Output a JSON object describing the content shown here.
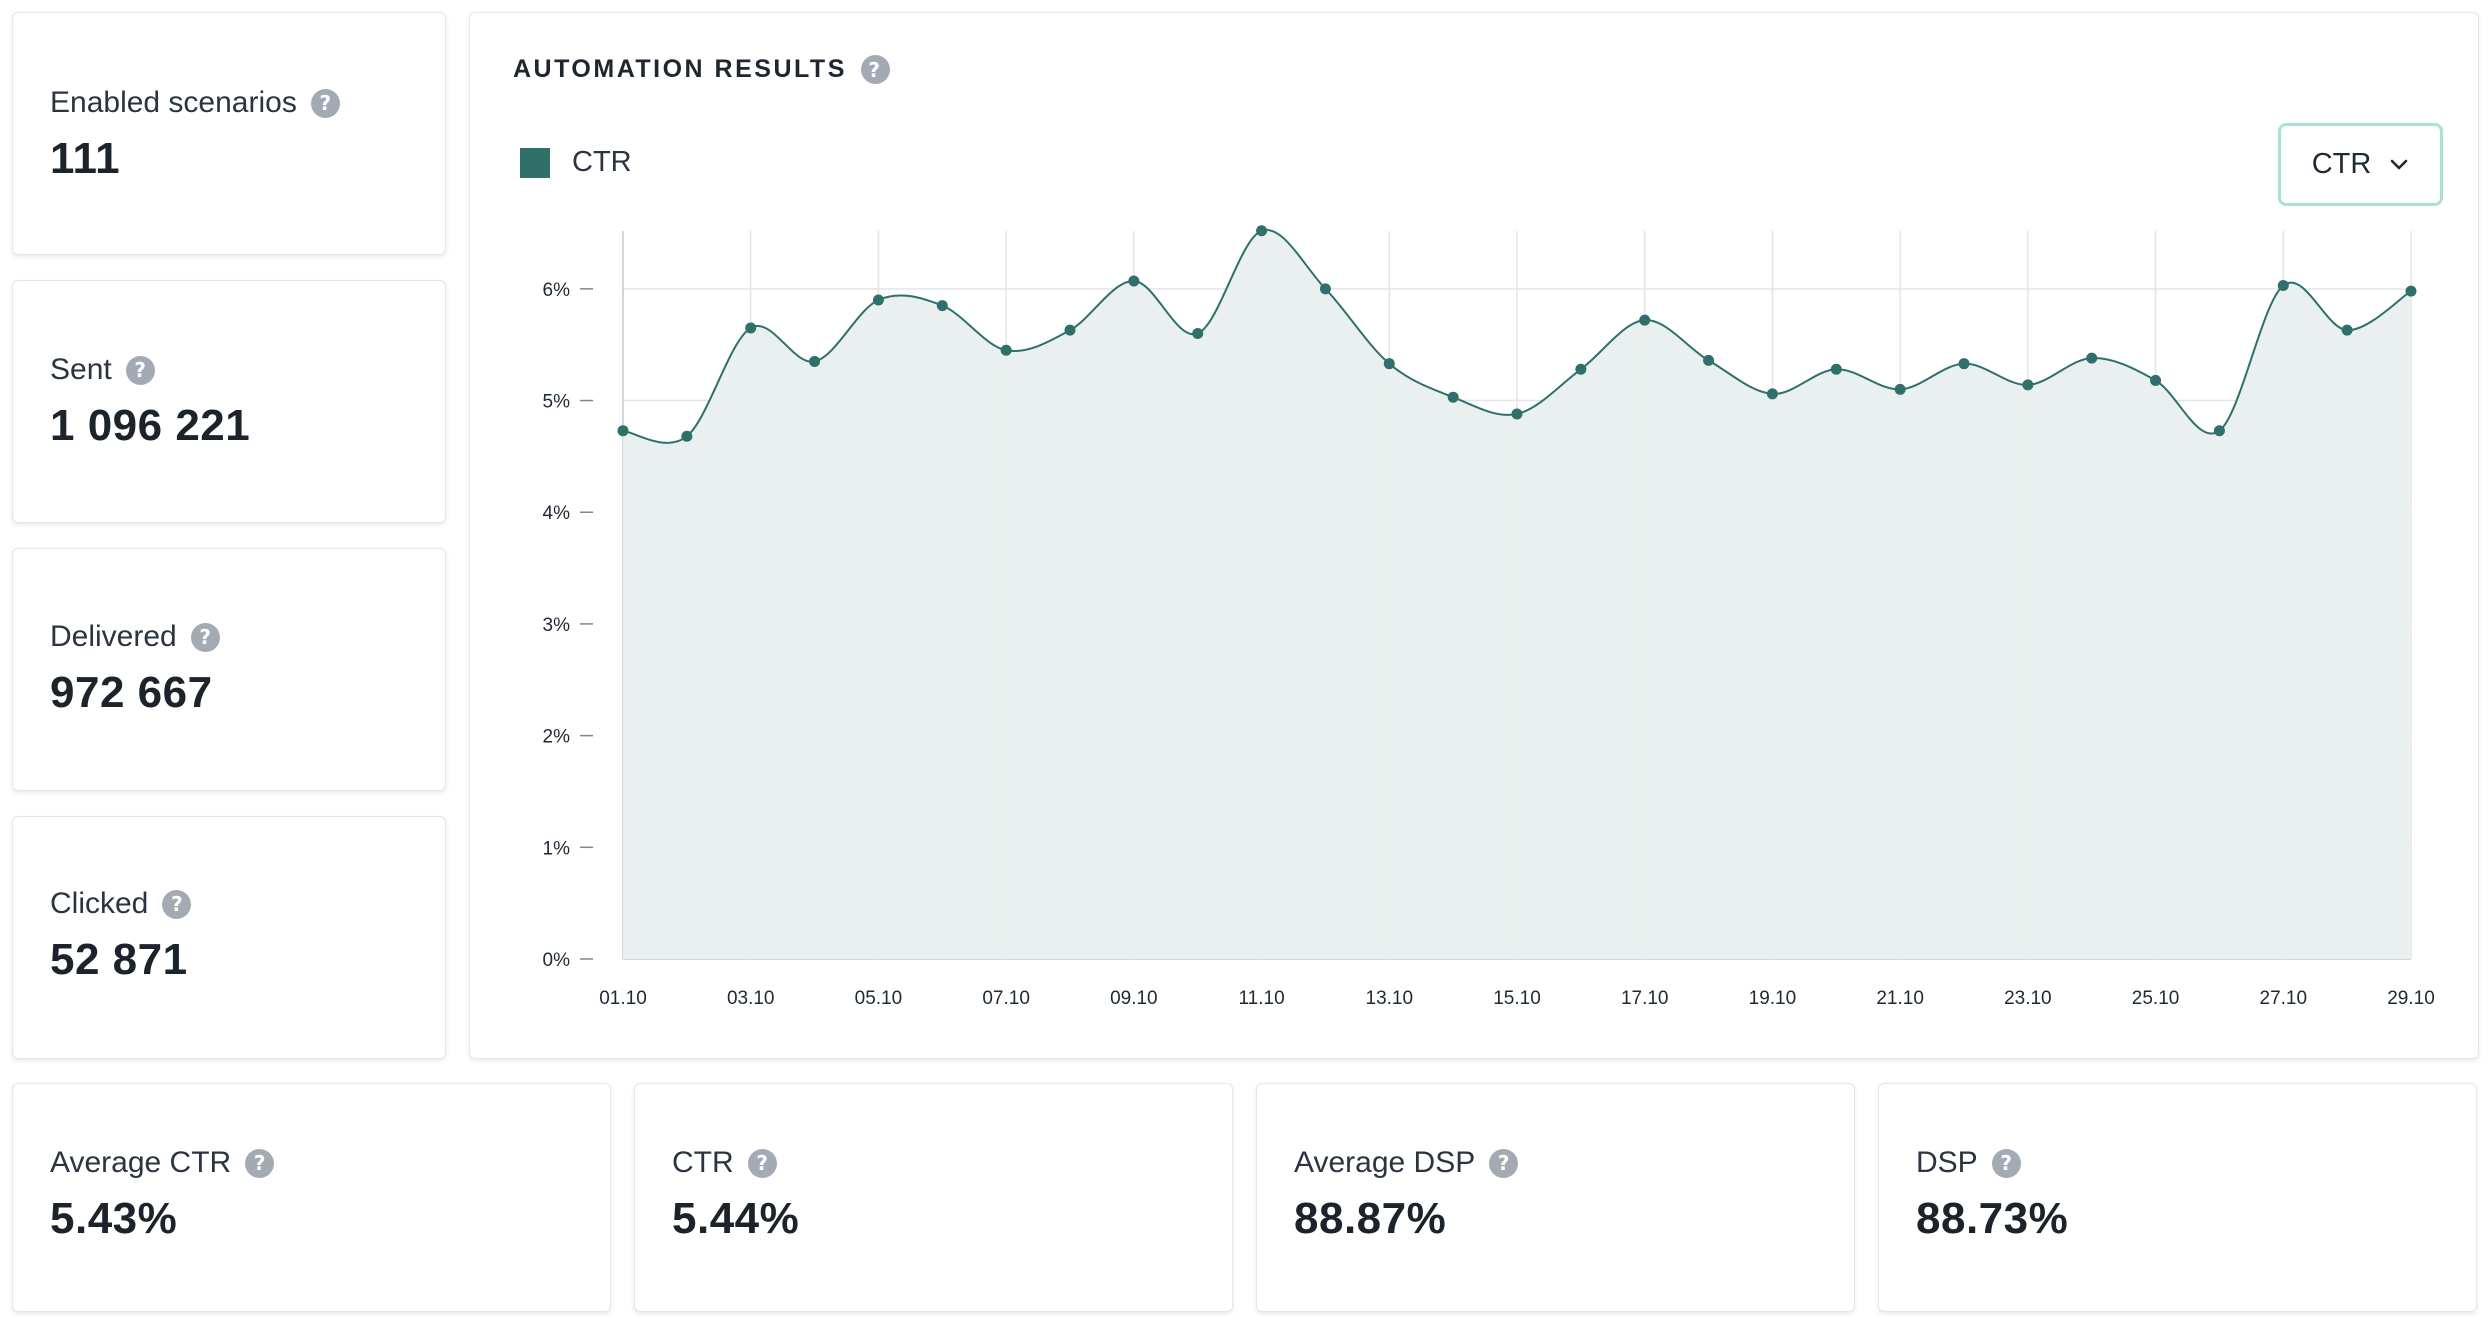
{
  "stats": {
    "enabled": {
      "label": "Enabled scenarios",
      "value": "111"
    },
    "sent": {
      "label": "Sent",
      "value": "1 096 221"
    },
    "delivered": {
      "label": "Delivered",
      "value": "972 667"
    },
    "clicked": {
      "label": "Clicked",
      "value": "52 871"
    }
  },
  "bottom_stats": {
    "avg_ctr": {
      "label": "Average CTR",
      "value": "5.43%"
    },
    "ctr": {
      "label": "CTR",
      "value": "5.44%"
    },
    "avg_dsp": {
      "label": "Average DSP",
      "value": "88.87%"
    },
    "dsp": {
      "label": "DSP",
      "value": "88.73%"
    }
  },
  "help_glyph": "?",
  "chart_panel": {
    "title": "AUTOMATION RESULTS",
    "legend_label": "CTR",
    "selector_value": "CTR",
    "icons": [
      "help-icon",
      "chevron-down-icon"
    ]
  },
  "colors": {
    "series": "#2f706b",
    "fill": "#e8efee",
    "grid": "#e2e5e8",
    "select_border": "#a8e3cf",
    "help_icon": "#a3aab4"
  },
  "chart_data": {
    "type": "area",
    "x": [
      "01.10",
      "02.10",
      "03.10",
      "04.10",
      "05.10",
      "06.10",
      "07.10",
      "08.10",
      "09.10",
      "10.10",
      "11.10",
      "12.10",
      "13.10",
      "14.10",
      "15.10",
      "16.10",
      "17.10",
      "18.10",
      "19.10",
      "20.10",
      "21.10",
      "22.10",
      "23.10",
      "24.10",
      "25.10",
      "26.10",
      "27.10",
      "28.10",
      "29.10"
    ],
    "x_tick_labels": [
      "01.10",
      "03.10",
      "05.10",
      "07.10",
      "09.10",
      "11.10",
      "13.10",
      "15.10",
      "17.10",
      "19.10",
      "21.10",
      "23.10",
      "25.10",
      "27.10",
      "29.10"
    ],
    "series": [
      {
        "name": "CTR",
        "values": [
          4.73,
          4.68,
          5.65,
          5.35,
          5.9,
          5.85,
          5.45,
          5.63,
          6.07,
          5.6,
          6.52,
          6.0,
          5.33,
          5.03,
          4.88,
          5.28,
          5.72,
          5.36,
          5.06,
          5.28,
          5.1,
          5.33,
          5.14,
          5.38,
          5.18,
          4.73,
          6.03,
          5.63,
          5.98
        ]
      }
    ],
    "y_ticks": [
      "0%",
      "1%",
      "2%",
      "3%",
      "4%",
      "5%",
      "6%"
    ],
    "ylim": [
      0,
      6.5
    ],
    "grid": true,
    "legend": "top-left"
  }
}
